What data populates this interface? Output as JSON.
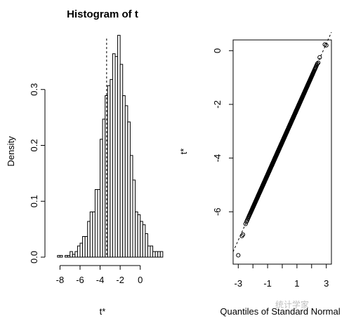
{
  "chart_data": [
    {
      "type": "bar",
      "title": "Histogram of t",
      "xlabel": "t*",
      "ylabel": "Density",
      "xlim": [
        -8.8,
        1.0
      ],
      "ylim": [
        0,
        0.41
      ],
      "x_ticks": [
        -8,
        -6,
        -4,
        -2,
        0
      ],
      "y_ticks": [
        0.0,
        0.1,
        0.2,
        0.3
      ],
      "y_tick_labels": [
        "0.0",
        "0.1",
        "0.2",
        "0.3"
      ],
      "bin_width": 0.25,
      "bin_start": -8.25,
      "values": [
        0.003,
        0.003,
        0.0,
        0.003,
        0.003,
        0.01,
        0.005,
        0.01,
        0.02,
        0.025,
        0.037,
        0.037,
        0.064,
        0.081,
        0.081,
        0.121,
        0.121,
        0.211,
        0.247,
        0.289,
        0.307,
        0.318,
        0.364,
        0.359,
        0.397,
        0.345,
        0.289,
        0.271,
        0.242,
        0.182,
        0.138,
        0.081,
        0.076,
        0.064,
        0.058,
        0.042,
        0.02,
        0.02,
        0.01,
        0.01,
        0.01,
        0.01
      ],
      "reference_line_x": -3.35
    },
    {
      "type": "scatter",
      "xlabel": "Quantiles of Standard Normal",
      "ylabel": "t*",
      "xlim": [
        -3.35,
        3.35
      ],
      "ylim": [
        -7.95,
        0.4
      ],
      "x_ticks": [
        -3,
        -1,
        1,
        3
      ],
      "y_ticks": [
        0,
        -2,
        -4,
        -6
      ],
      "y_tick_labels": [
        "0",
        "-2",
        "-4",
        "-6"
      ],
      "reference_line": {
        "intercept": -3.4,
        "slope": 1.22
      },
      "points_summary": "approximately 1000 points lying on the reference line between x = -3 and x = 3",
      "outliers": [
        [
          -3.0,
          -7.62
        ],
        [
          -2.75,
          -6.9
        ],
        [
          -2.68,
          -6.85
        ],
        [
          -2.5,
          -6.45
        ],
        [
          2.9,
          0.23
        ],
        [
          3.0,
          0.2
        ],
        [
          2.55,
          -0.25
        ],
        [
          2.45,
          -0.45
        ]
      ]
    }
  ],
  "watermark": "统计学家"
}
